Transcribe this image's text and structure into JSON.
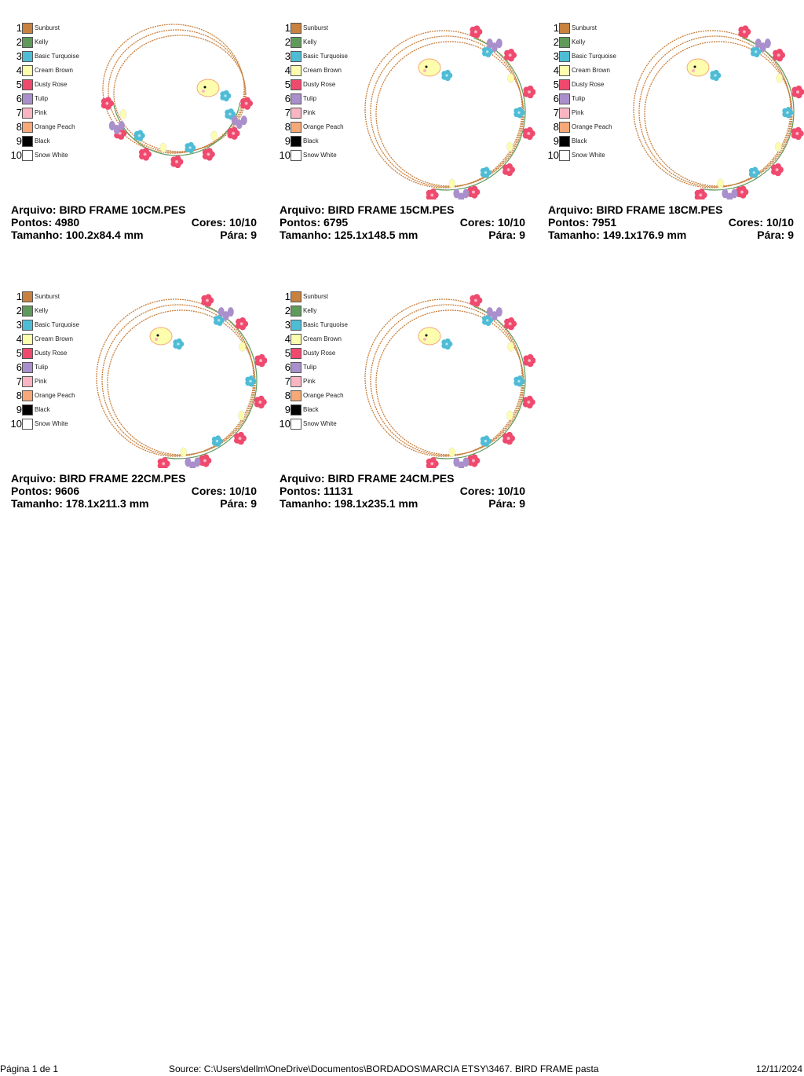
{
  "colors": [
    {
      "num": "1",
      "name": "Sunburst",
      "hex": "#c8813f"
    },
    {
      "num": "2",
      "name": "Kelly",
      "hex": "#5f9a5a"
    },
    {
      "num": "3",
      "name": "Basic Turquoise",
      "hex": "#4fbcd6"
    },
    {
      "num": "4",
      "name": "Cream Brown",
      "hex": "#fdfdae"
    },
    {
      "num": "5",
      "name": "Dusty Rose",
      "hex": "#ef4a6e"
    },
    {
      "num": "6",
      "name": "Tulip",
      "hex": "#a98fcb"
    },
    {
      "num": "7",
      "name": "Pink",
      "hex": "#f9b6c2"
    },
    {
      "num": "8",
      "name": "Orange Peach",
      "hex": "#f6a878"
    },
    {
      "num": "9",
      "name": "Black",
      "hex": "#000000"
    },
    {
      "num": "10",
      "name": "Snow White",
      "hex": "#ffffff"
    }
  ],
  "designs": [
    {
      "arquivo": "Arquivo: BIRD FRAME 10CM.PES",
      "pontos": "Pontos: 4980",
      "cores": "Cores: 10/10",
      "tamanho": "Tamanho: 100.2x84.4 mm",
      "para": "Pára: 9",
      "layout": "bottom"
    },
    {
      "arquivo": "Arquivo: BIRD FRAME 15CM.PES",
      "pontos": "Pontos: 6795",
      "cores": "Cores: 10/10",
      "tamanho": "Tamanho: 125.1x148.5 mm",
      "para": "Pára: 9",
      "layout": "right"
    },
    {
      "arquivo": "Arquivo: BIRD FRAME 18CM.PES",
      "pontos": "Pontos: 7951",
      "cores": "Cores: 10/10",
      "tamanho": "Tamanho: 149.1x176.9 mm",
      "para": "Pára: 9",
      "layout": "right"
    },
    {
      "arquivo": "Arquivo: BIRD FRAME 22CM.PES",
      "pontos": "Pontos: 9606",
      "cores": "Cores: 10/10",
      "tamanho": "Tamanho: 178.1x211.3 mm",
      "para": "Pára: 9",
      "layout": "right"
    },
    {
      "arquivo": "Arquivo: BIRD FRAME 24CM.PES",
      "pontos": "Pontos: 11131",
      "cores": "Cores: 10/10",
      "tamanho": "Tamanho: 198.1x235.1 mm",
      "para": "Pára: 9",
      "layout": "right"
    }
  ],
  "footer": {
    "page": "Página 1 de 1",
    "source": "Source: C:\\Users\\dellm\\OneDrive\\Documentos\\BORDADOS\\MARCIA ETSY\\3467. BIRD FRAME pasta",
    "date": "12/11/2024"
  }
}
